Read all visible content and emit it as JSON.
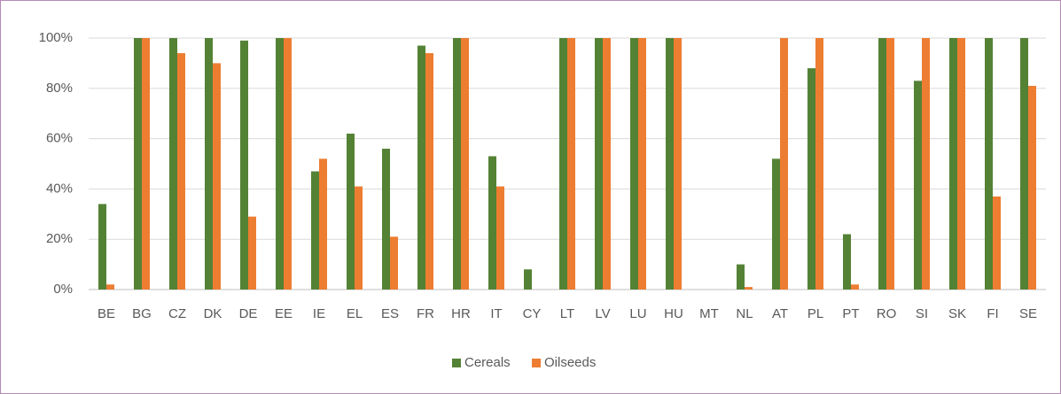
{
  "chart_data": {
    "type": "bar",
    "categories": [
      "BE",
      "BG",
      "CZ",
      "DK",
      "DE",
      "EE",
      "IE",
      "EL",
      "ES",
      "FR",
      "HR",
      "IT",
      "CY",
      "LT",
      "LV",
      "LU",
      "HU",
      "MT",
      "NL",
      "AT",
      "PL",
      "PT",
      "RO",
      "SI",
      "SK",
      "FI",
      "SE"
    ],
    "series": [
      {
        "name": "Cereals",
        "color": "#548235",
        "values": [
          34,
          100,
          100,
          100,
          99,
          100,
          47,
          62,
          56,
          97,
          100,
          53,
          8,
          100,
          100,
          100,
          100,
          0,
          10,
          52,
          88,
          22,
          100,
          83,
          100,
          100,
          100
        ]
      },
      {
        "name": "Oilseeds",
        "color": "#ed7d31",
        "values": [
          2,
          100,
          94,
          90,
          29,
          100,
          52,
          41,
          21,
          94,
          100,
          41,
          0,
          100,
          100,
          100,
          100,
          0,
          1,
          100,
          100,
          2,
          100,
          100,
          100,
          37,
          81
        ]
      }
    ],
    "ylim": [
      0,
      100
    ],
    "yticks": [
      {
        "value": 0,
        "label": "0%"
      },
      {
        "value": 20,
        "label": "20%"
      },
      {
        "value": 40,
        "label": "40%"
      },
      {
        "value": 60,
        "label": "60%"
      },
      {
        "value": 80,
        "label": "80%"
      },
      {
        "value": 100,
        "label": "100%"
      }
    ],
    "grid": true,
    "legend": "bottom"
  }
}
